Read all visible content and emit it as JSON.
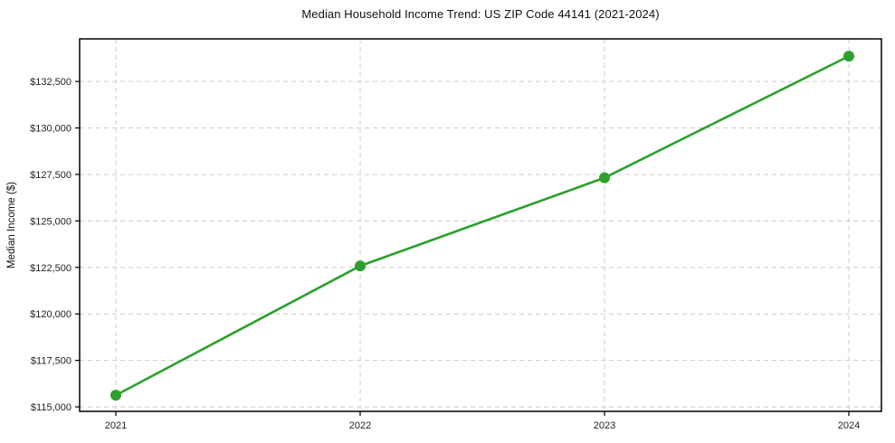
{
  "chart_data": {
    "type": "line",
    "title": "Median Household Income Trend: US ZIP Code 44141 (2021-2024)",
    "xlabel": "",
    "ylabel": "Median Income ($)",
    "categories": [
      "2021",
      "2022",
      "2023",
      "2024"
    ],
    "series": [
      {
        "name": "Median Household Income",
        "values": [
          115630,
          122580,
          127320,
          133860
        ]
      }
    ],
    "ylim": [
      114760,
      134790
    ],
    "yticks": [
      115000,
      117500,
      120000,
      122500,
      125000,
      127500,
      130000,
      132500
    ],
    "ytick_labels": [
      "$115,000",
      "$117,500",
      "$120,000",
      "$122,500",
      "$125,000",
      "$127,500",
      "$130,000",
      "$132,500"
    ],
    "grid": true,
    "grid_style": "dashed",
    "legend": "none",
    "colors": {
      "line": "#2ca02c",
      "marker": "#2ca02c",
      "grid": "#cccccc",
      "spine": "#000000",
      "text": "#222222",
      "background": "#ffffff"
    }
  }
}
